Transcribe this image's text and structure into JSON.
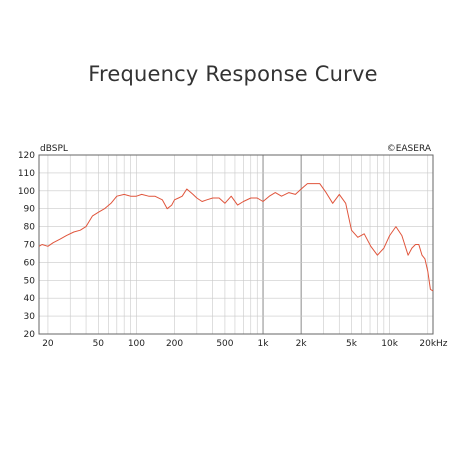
{
  "page": {
    "title": "Frequency Response Curve"
  },
  "chart_data": {
    "type": "line",
    "title": "Frequency Response Curve",
    "ylabel": "dBSPL",
    "xlabel": "Hz",
    "annotation": "©EASERA",
    "x_scale": "log",
    "xlim": [
      17,
      22000
    ],
    "ylim": [
      20,
      120
    ],
    "grid": true,
    "x_ticks": [
      {
        "value": 20,
        "label": "20"
      },
      {
        "value": 50,
        "label": "50"
      },
      {
        "value": 100,
        "label": "100"
      },
      {
        "value": 200,
        "label": "200"
      },
      {
        "value": 500,
        "label": "500"
      },
      {
        "value": 1000,
        "label": "1k"
      },
      {
        "value": 2000,
        "label": "2k"
      },
      {
        "value": 5000,
        "label": "5k"
      },
      {
        "value": 10000,
        "label": "10k"
      },
      {
        "value": 20000,
        "label": "20k"
      }
    ],
    "y_ticks": [
      120,
      110,
      100,
      90,
      80,
      70,
      60,
      50,
      40,
      30,
      20
    ],
    "colors": {
      "curve": "#e0553c",
      "grid": "#c9c9c9",
      "frame": "#666666"
    },
    "series": [
      {
        "x": [
          17,
          18,
          20,
          22,
          25,
          28,
          32,
          36,
          40,
          45,
          50,
          56,
          63,
          70,
          80,
          90,
          100,
          110,
          125,
          140,
          160,
          175,
          190,
          200,
          215,
          230,
          250,
          280,
          300,
          330,
          360,
          400,
          450,
          500,
          560,
          630,
          700,
          800,
          900,
          1000,
          1120,
          1250,
          1400,
          1600,
          1800,
          2000,
          2240,
          2500,
          2800,
          3150,
          3550,
          4000,
          4500,
          5000,
          5600,
          6300,
          7100,
          8000,
          9000,
          10000,
          11200,
          12500,
          14000,
          15000,
          16000,
          17000,
          18000,
          19000,
          20000,
          21000,
          22000
        ],
        "y": [
          69,
          70,
          69,
          71,
          73,
          75,
          77,
          78,
          80,
          86,
          88,
          90,
          93,
          97,
          98,
          97,
          97,
          98,
          97,
          97,
          95,
          90,
          92,
          95,
          96,
          97,
          101,
          98,
          96,
          94,
          95,
          96,
          96,
          93,
          97,
          92,
          94,
          96,
          96,
          94,
          97,
          99,
          97,
          99,
          98,
          101,
          104,
          104,
          104,
          99,
          93,
          98,
          93,
          78,
          74,
          76,
          69,
          64,
          68,
          75,
          80,
          75,
          64,
          68,
          70,
          70,
          64,
          62,
          55,
          45,
          44
        ]
      }
    ]
  }
}
